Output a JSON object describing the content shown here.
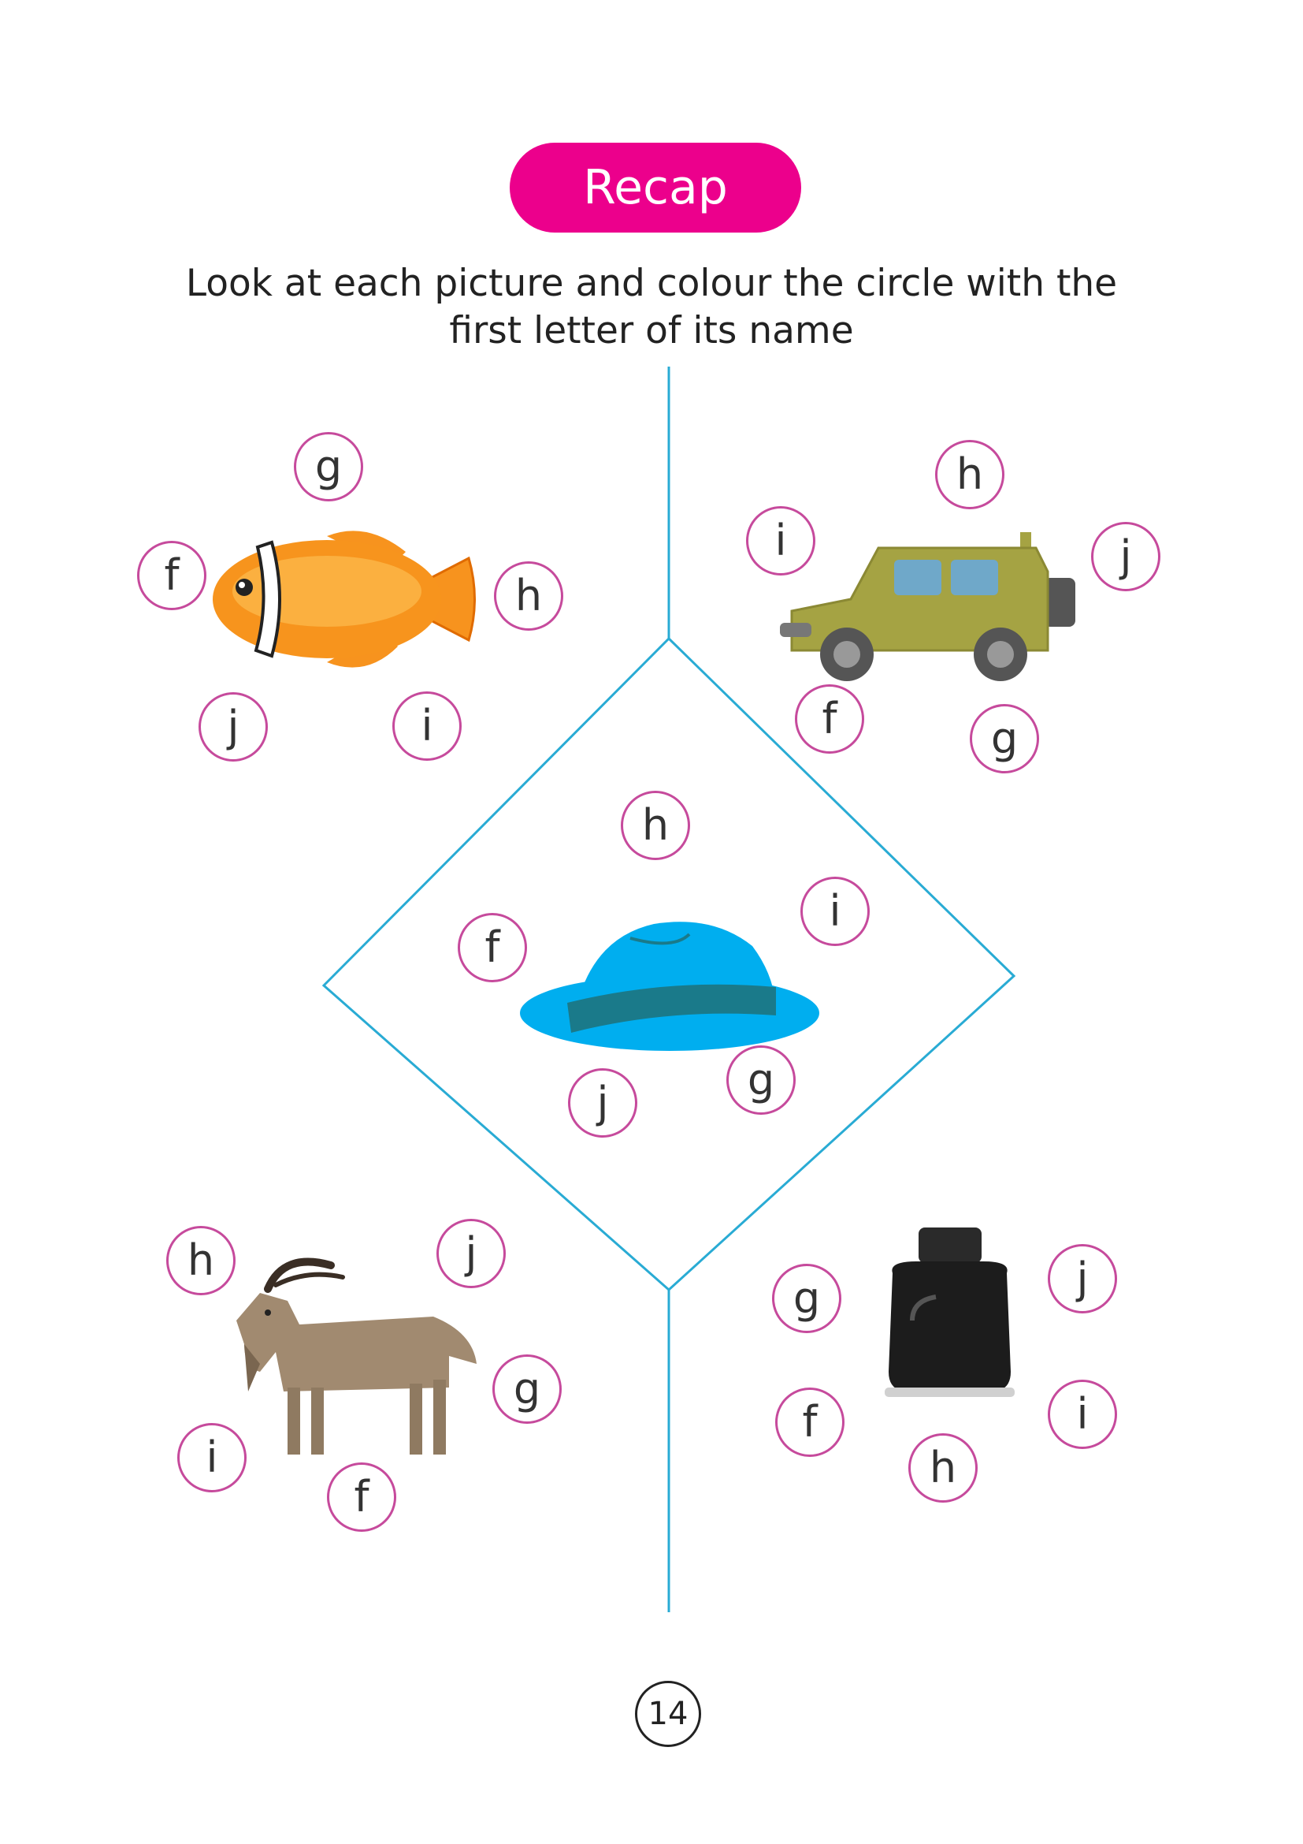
{
  "header": {
    "title": "Recap",
    "color": "#ec008c"
  },
  "instruction": {
    "line1": "Look at each picture and colour the circle with the",
    "line2": "first letter of its name"
  },
  "colors": {
    "guide_line": "#29abd4",
    "circle_border": "#c64a9c"
  },
  "pictures": {
    "fish": {
      "icon": "clownfish",
      "options": [
        "g",
        "f",
        "h",
        "j",
        "i"
      ]
    },
    "jeep": {
      "icon": "jeep",
      "options": [
        "h",
        "i",
        "j",
        "f",
        "g"
      ]
    },
    "hat": {
      "icon": "hat",
      "options": [
        "h",
        "i",
        "f",
        "j",
        "g"
      ]
    },
    "goat": {
      "icon": "goat",
      "options": [
        "h",
        "j",
        "g",
        "i",
        "f"
      ]
    },
    "inkpot": {
      "icon": "ink-bottle",
      "options": [
        "g",
        "j",
        "f",
        "i",
        "h"
      ]
    }
  },
  "page_number": "14"
}
